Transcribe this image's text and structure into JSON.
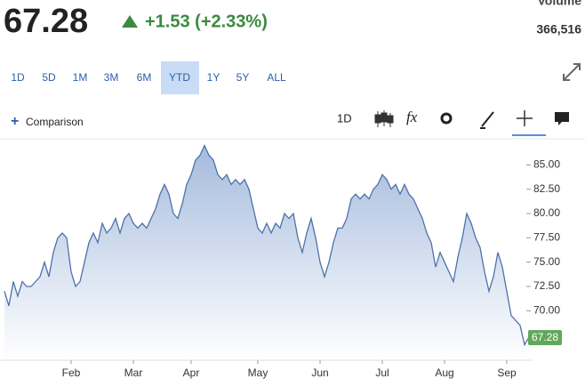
{
  "quote": {
    "price": "67.28",
    "change": "+1.53 (+2.33%)",
    "volume_label": "Volume",
    "volume": "366,516"
  },
  "ranges": [
    "1D",
    "5D",
    "1M",
    "3M",
    "6M",
    "YTD",
    "1Y",
    "5Y",
    "ALL"
  ],
  "active_range": "YTD",
  "toolbar": {
    "comparison": "Comparison",
    "interval": "1D",
    "function": "fx"
  },
  "chart_data": {
    "type": "area",
    "categories": [
      null,
      null,
      null,
      null,
      null,
      null,
      null,
      null,
      null,
      null,
      null,
      null,
      null,
      null,
      null,
      "Feb",
      null,
      null,
      null,
      null,
      null,
      null,
      null,
      null,
      null,
      null,
      null,
      null,
      null,
      "Mar",
      null,
      null,
      null,
      null,
      null,
      null,
      null,
      null,
      null,
      null,
      null,
      null,
      "Apr",
      null,
      null,
      null,
      null,
      null,
      null,
      null,
      null,
      null,
      null,
      null,
      null,
      null,
      null,
      "May",
      null,
      null,
      null,
      null,
      null,
      null,
      null,
      null,
      null,
      null,
      null,
      null,
      null,
      "Jun",
      null,
      null,
      null,
      null,
      null,
      null,
      null,
      null,
      null,
      null,
      null,
      null,
      null,
      "Jul",
      null,
      null,
      null,
      null,
      null,
      null,
      null,
      null,
      null,
      null,
      null,
      null,
      null,
      "Aug",
      null,
      null,
      null,
      null,
      null,
      null,
      null,
      null,
      null,
      null,
      null,
      null,
      null,
      "Sep",
      null,
      null,
      null,
      null,
      null
    ],
    "series": [
      {
        "color": "#4f72a8",
        "values": [
          72,
          70.5,
          73,
          71.5,
          73,
          72.5,
          72.5,
          73,
          73.5,
          75,
          73.5,
          76,
          77.5,
          78,
          77.5,
          74,
          72.5,
          73,
          75,
          77,
          78,
          77,
          79,
          78,
          78.5,
          79.5,
          78,
          79.5,
          80,
          79,
          78.5,
          79,
          78.5,
          79.5,
          80.5,
          82,
          83,
          82,
          80,
          79.5,
          81,
          83,
          84,
          85.5,
          86,
          87,
          86,
          85.5,
          84,
          83.5,
          84,
          83,
          83.5,
          83,
          83.5,
          82.5,
          80.5,
          78.5,
          78,
          79,
          78,
          79,
          78.5,
          80,
          79.5,
          80,
          77.5,
          76,
          78,
          79.5,
          77.5,
          75,
          73.5,
          75,
          77,
          78.5,
          78.5,
          79.5,
          81.5,
          82,
          81.5,
          82,
          81.5,
          82.5,
          83,
          84,
          83.5,
          82.5,
          83,
          82,
          83,
          82,
          81.5,
          80.5,
          79.5,
          78,
          77,
          74.5,
          76,
          75,
          74,
          73,
          75.5,
          77.5,
          80,
          79,
          77.5,
          76.5,
          74,
          72,
          73.5,
          76,
          74.5,
          72,
          69.5,
          69,
          68.5,
          66.5,
          67.28
        ]
      }
    ],
    "ylim": [
      64.9,
      87.6
    ],
    "yticks": [
      {
        "value": 70,
        "label": "70.00"
      },
      {
        "value": 72.5,
        "label": "72.50"
      },
      {
        "value": 75,
        "label": "75.00"
      },
      {
        "value": 77.5,
        "label": "77.50"
      },
      {
        "value": 80,
        "label": "80.00"
      },
      {
        "value": 82.5,
        "label": "82.50"
      },
      {
        "value": 85,
        "label": "85.00"
      }
    ],
    "last_label_color": "#62a85b"
  }
}
